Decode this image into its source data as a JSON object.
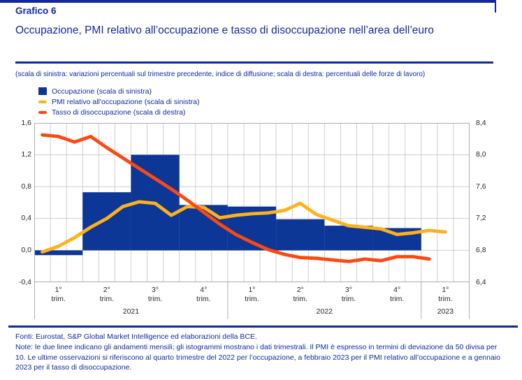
{
  "page": {
    "kicker": "Grafico 6",
    "title": "Occupazione, PMI relativo all’occupazione e tasso di disoccupazione nell’area dell’euro",
    "subtitle": "(scala di sinistra: variazioni percentuali sul trimestre precedente, indice di diffusione; scala di destra: percentuali delle forze di lavoro)"
  },
  "legend": {
    "items": [
      {
        "label": "Occupazione (scala di sinistra)",
        "swatch": "bar",
        "color": "#0D3796"
      },
      {
        "label": "PMI relativo all'occupazione (scala di sinistra)",
        "swatch": "line",
        "color": "#FFB119"
      },
      {
        "label": "Tasso di disoccupazione (scala di destra)",
        "swatch": "line",
        "color": "#FC4812"
      }
    ]
  },
  "colors": {
    "navy": "#12299E",
    "bar_blue": "#0D3796",
    "pmi_yellow": "#FFB119",
    "unemployment_orange": "#FC4812",
    "gridline": "#cfcfcf",
    "plot_border": "#aeaeae"
  },
  "chart_data": {
    "type": "combo",
    "title": "Occupazione, PMI relativo all’occupazione e tasso di disoccupazione nell’area dell’euro",
    "left_axis": {
      "min": -0.4,
      "max": 1.6,
      "tick_step": 0.4,
      "tick_labels": [
        "1,6",
        "1,2",
        "0,8",
        "0,4",
        "0,0",
        "-0,4"
      ],
      "tick_values": [
        1.6,
        1.2,
        0.8,
        0.4,
        0.0,
        -0.4
      ]
    },
    "right_axis": {
      "min": 6.4,
      "max": 8.4,
      "tick_step": 0.4,
      "tick_labels": [
        "8,4",
        "8,0",
        "7,6",
        "7,2",
        "6,8",
        "6,4"
      ],
      "tick_values": [
        8.4,
        8.0,
        7.6,
        7.2,
        6.8,
        6.4
      ]
    },
    "x_axis": {
      "months_total": 27,
      "first_month": "2021-01",
      "last_month": "2023-03",
      "quarter_labels": [
        {
          "top": "1°",
          "bottom": "trim."
        },
        {
          "top": "2°",
          "bottom": "trim."
        },
        {
          "top": "3°",
          "bottom": "trim."
        },
        {
          "top": "4°",
          "bottom": "trim."
        },
        {
          "top": "1°",
          "bottom": "trim."
        },
        {
          "top": "2°",
          "bottom": "trim."
        },
        {
          "top": "3°",
          "bottom": "trim."
        },
        {
          "top": "4°",
          "bottom": "trim."
        },
        {
          "top": "1°",
          "bottom": "trim."
        }
      ],
      "year_labels": [
        {
          "label": "2021",
          "quarters": 4
        },
        {
          "label": "2022",
          "quarters": 4
        },
        {
          "label": "2023",
          "quarters": 1
        }
      ]
    },
    "grid": {
      "horizontal": "every 0.4",
      "vertical": "monthly"
    },
    "legend_position": "top-left",
    "series": [
      {
        "name": "Occupazione (scala di sinistra)",
        "type": "bar",
        "axis": "left",
        "color": "#0D3796",
        "frequency": "quarterly",
        "x": [
          "2021 1° trim.",
          "2021 2° trim.",
          "2021 3° trim.",
          "2021 4° trim.",
          "2022 1° trim.",
          "2022 2° trim.",
          "2022 3° trim.",
          "2022 4° trim."
        ],
        "values": [
          -0.06,
          0.73,
          1.2,
          0.57,
          0.55,
          0.39,
          0.31,
          0.28
        ]
      },
      {
        "name": "PMI relativo all'occupazione (scala di sinistra)",
        "type": "line",
        "axis": "left",
        "color": "#FFB119",
        "frequency": "monthly",
        "x": [
          "2021-01",
          "2021-02",
          "2021-03",
          "2021-04",
          "2021-05",
          "2021-06",
          "2021-07",
          "2021-08",
          "2021-09",
          "2021-10",
          "2021-11",
          "2021-12",
          "2022-01",
          "2022-02",
          "2022-03",
          "2022-04",
          "2022-05",
          "2022-06",
          "2022-07",
          "2022-08",
          "2022-09",
          "2022-10",
          "2022-11",
          "2022-12",
          "2023-01",
          "2023-02"
        ],
        "values": [
          -0.02,
          0.05,
          0.16,
          0.29,
          0.4,
          0.55,
          0.61,
          0.59,
          0.44,
          0.55,
          0.54,
          0.41,
          0.44,
          0.46,
          0.47,
          0.5,
          0.59,
          0.45,
          0.38,
          0.31,
          0.29,
          0.27,
          0.2,
          0.22,
          0.25,
          0.23
        ]
      },
      {
        "name": "Tasso di disoccupazione (scala di destra)",
        "type": "line",
        "axis": "right",
        "color": "#FC4812",
        "frequency": "monthly",
        "x": [
          "2021-01",
          "2021-02",
          "2021-03",
          "2021-04",
          "2021-05",
          "2021-06",
          "2021-07",
          "2021-08",
          "2021-09",
          "2021-10",
          "2021-11",
          "2021-12",
          "2022-01",
          "2022-02",
          "2022-03",
          "2022-04",
          "2022-05",
          "2022-06",
          "2022-07",
          "2022-08",
          "2022-09",
          "2022-10",
          "2022-11",
          "2022-12",
          "2023-01"
        ],
        "values": [
          8.25,
          8.23,
          8.16,
          8.23,
          8.09,
          7.96,
          7.83,
          7.7,
          7.57,
          7.43,
          7.28,
          7.13,
          7.0,
          6.9,
          6.81,
          6.75,
          6.71,
          6.7,
          6.68,
          6.66,
          6.69,
          6.67,
          6.72,
          6.72,
          6.69
        ]
      }
    ]
  },
  "footer": {
    "sources": "Fonti: Eurostat, S&P Global Market Intelligence ed elaborazioni della BCE.",
    "note": "Note: le due linee indicano gli andamenti mensili; gli istogrammi mostrano i dati trimestrali. Il PMI è espresso in termini di deviazione da 50 divisa per 10. Le ultime osservazioni si riferiscono al quarto trimestre del 2022 per l’occupazione, a febbraio 2023 per il PMI relativo all’occupazione e a gennaio 2023 per il tasso di disoccupazione."
  }
}
